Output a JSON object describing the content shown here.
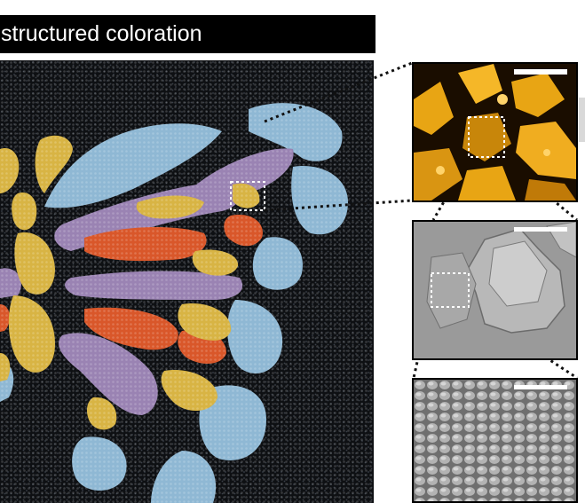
{
  "panel": {
    "title": "structured coloration"
  },
  "colors": {
    "blue": "#8fb8d4",
    "purple": "#9a83b3",
    "gold": "#d8b444",
    "orange": "#d9572a",
    "fabric": "#0e1013",
    "optical_gold": "#e8a514",
    "sem_gray": "#9a9a9a"
  },
  "images": [
    {
      "name": "fabric-photo",
      "description_icon": "butterfly-embroidery"
    },
    {
      "name": "optical-micrograph",
      "description_icon": "gold-flakes"
    },
    {
      "name": "sem-flakes",
      "description_icon": "flake-cluster"
    },
    {
      "name": "sem-nanospheres",
      "description_icon": "close-packed-spheres"
    }
  ]
}
